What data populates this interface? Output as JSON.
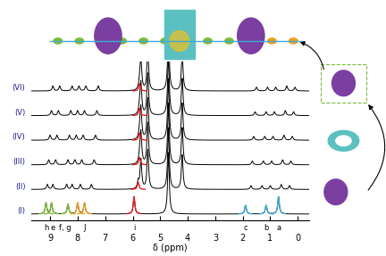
{
  "chart_data": {
    "type": "nmr_stack",
    "x_label": "δ (ppm)",
    "xlim": [
      9.7,
      -0.4
    ],
    "xticks": [
      0,
      1,
      2,
      3,
      4,
      5,
      6,
      7,
      8,
      9
    ],
    "tick_labels": "x",
    "peak_labels": [
      {
        "label": "h",
        "x": 9.15
      },
      {
        "label": "e",
        "x": 8.9
      },
      {
        "label": "f, g",
        "x": 8.45
      },
      {
        "label": "J",
        "x": 7.75
      },
      {
        "label": "i",
        "x": 5.95
      },
      {
        "label": "c",
        "x": 1.9
      },
      {
        "label": "b",
        "x": 1.15
      },
      {
        "label": "a",
        "x": 0.7
      }
    ],
    "series": [
      {
        "name": "(I)",
        "peaks": [
          9.15,
          8.95,
          8.35,
          8.0,
          7.75,
          5.95,
          4.7,
          1.9,
          1.15,
          0.7
        ],
        "intensities": [
          0.45,
          0.45,
          0.4,
          0.45,
          0.45,
          0.7,
          2.5,
          0.35,
          0.35,
          0.7
        ],
        "colors": [
          "#7dbb3a",
          "#7dbb3a",
          "#7dbb3a",
          "#f0a020",
          "#f0a020",
          "#e02020",
          "#000000",
          "#3fa9d6",
          "#3fa9d6",
          "#3fa9d6"
        ]
      },
      {
        "name": "(II)",
        "peaks": [
          9.1,
          8.9,
          8.4,
          8.2,
          7.9,
          7.5,
          5.8,
          5.7,
          5.45,
          4.7,
          4.2,
          1.7,
          1.3,
          1.0,
          0.6,
          0.3
        ],
        "intensities": [
          0.2,
          0.2,
          0.2,
          0.2,
          0.2,
          0.2,
          0.3,
          1.2,
          1.6,
          2.5,
          1.4,
          0.15,
          0.15,
          0.15,
          0.2,
          0.15
        ],
        "colors": [
          "#000000",
          "#000000",
          "#000000",
          "#000000",
          "#000000",
          "#000000",
          "#e02020",
          "#000000",
          "#000000",
          "#000000",
          "#000000",
          "#000000",
          "#000000",
          "#000000",
          "#000000",
          "#000000"
        ]
      },
      {
        "name": "(III)",
        "peaks": [
          9.05,
          8.8,
          8.35,
          8.1,
          7.85,
          7.4,
          5.75,
          5.7,
          5.45,
          4.7,
          4.2,
          1.65,
          1.25,
          0.95,
          0.55,
          0.25
        ],
        "intensities": [
          0.2,
          0.2,
          0.2,
          0.2,
          0.2,
          0.2,
          0.3,
          1.3,
          1.7,
          2.5,
          1.5,
          0.15,
          0.15,
          0.15,
          0.2,
          0.15
        ],
        "colors": [
          "#000000",
          "#000000",
          "#000000",
          "#000000",
          "#000000",
          "#000000",
          "#e02020",
          "#000000",
          "#000000",
          "#000000",
          "#000000",
          "#000000",
          "#000000",
          "#000000",
          "#000000",
          "#000000"
        ]
      },
      {
        "name": "(IV)",
        "peaks": [
          9.0,
          8.75,
          8.3,
          8.05,
          7.8,
          7.35,
          5.75,
          5.7,
          5.45,
          4.7,
          4.2,
          1.6,
          1.2,
          0.9,
          0.5,
          0.2
        ],
        "intensities": [
          0.2,
          0.2,
          0.2,
          0.2,
          0.2,
          0.2,
          0.3,
          1.3,
          1.7,
          2.5,
          1.5,
          0.15,
          0.15,
          0.15,
          0.2,
          0.15
        ],
        "colors": [
          "#000000",
          "#000000",
          "#000000",
          "#000000",
          "#000000",
          "#000000",
          "#e02020",
          "#000000",
          "#000000",
          "#000000",
          "#000000",
          "#000000",
          "#000000",
          "#000000",
          "#000000",
          "#000000"
        ]
      },
      {
        "name": "(V)",
        "peaks": [
          8.95,
          8.7,
          8.25,
          8.0,
          7.75,
          7.3,
          5.75,
          5.7,
          5.45,
          4.7,
          4.2,
          1.55,
          1.15,
          0.85,
          0.45,
          0.15
        ],
        "intensities": [
          0.2,
          0.2,
          0.2,
          0.2,
          0.2,
          0.2,
          0.3,
          1.3,
          1.7,
          2.5,
          1.5,
          0.15,
          0.15,
          0.15,
          0.2,
          0.15
        ],
        "colors": [
          "#000000",
          "#000000",
          "#000000",
          "#000000",
          "#000000",
          "#000000",
          "#e02020",
          "#000000",
          "#000000",
          "#000000",
          "#000000",
          "#000000",
          "#000000",
          "#000000",
          "#000000",
          "#000000"
        ]
      },
      {
        "name": "(VI)",
        "peaks": [
          8.9,
          8.65,
          8.2,
          7.95,
          7.7,
          7.25,
          5.75,
          5.7,
          5.45,
          4.7,
          4.2,
          1.5,
          1.1,
          0.8,
          0.4,
          0.1
        ],
        "intensities": [
          0.2,
          0.2,
          0.2,
          0.2,
          0.2,
          0.2,
          0.3,
          1.3,
          1.7,
          2.5,
          1.5,
          0.15,
          0.15,
          0.15,
          0.2,
          0.15
        ],
        "colors": [
          "#000000",
          "#000000",
          "#000000",
          "#000000",
          "#000000",
          "#000000",
          "#e02020",
          "#000000",
          "#000000",
          "#000000",
          "#000000",
          "#000000",
          "#000000",
          "#000000",
          "#000000",
          "#000000"
        ]
      }
    ]
  }
}
